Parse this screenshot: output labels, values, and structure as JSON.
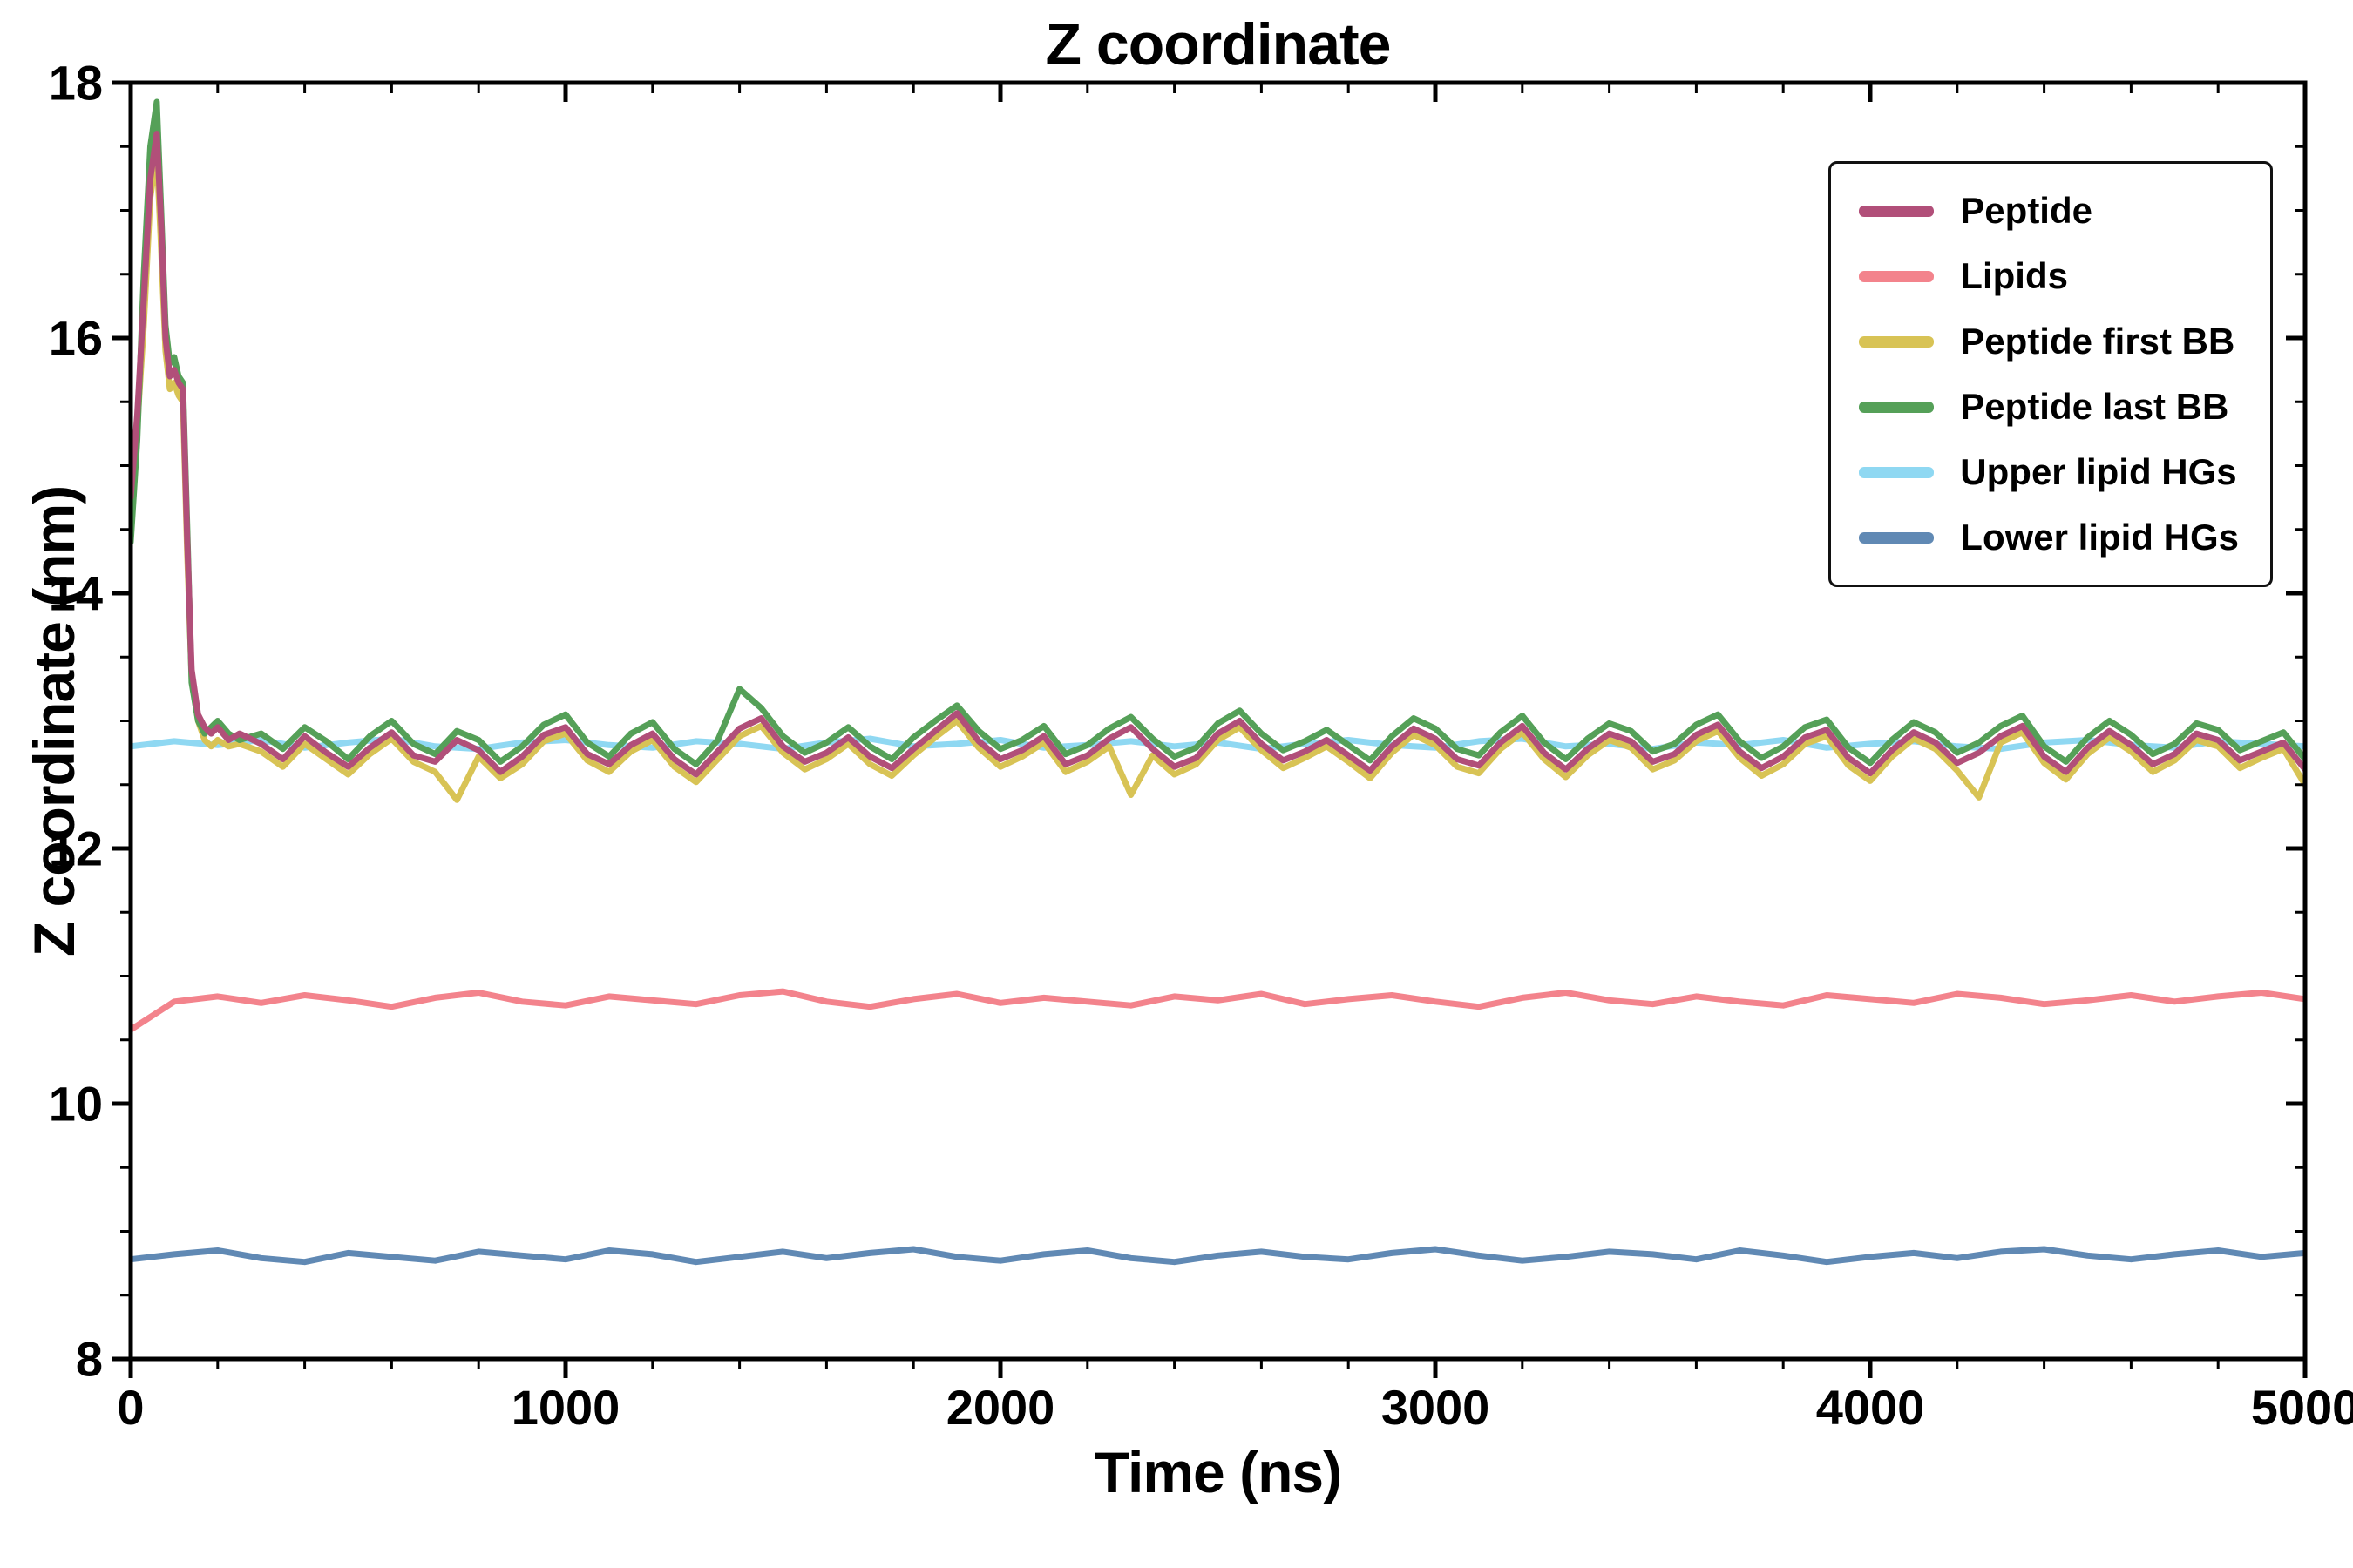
{
  "chart_data": {
    "type": "line",
    "title": "Z coordinate",
    "xlabel": "Time (ns)",
    "ylabel": "Z coordinate (nm)",
    "xlim": [
      0,
      5000
    ],
    "ylim": [
      8,
      18
    ],
    "xticks": [
      0,
      1000,
      2000,
      3000,
      4000,
      5000
    ],
    "yticks": [
      8,
      10,
      12,
      14,
      16,
      18
    ],
    "x_minor_step": 200,
    "y_minor_step": 0.5,
    "grid": false,
    "legend_position": "upper right",
    "axis_color": "#000000",
    "background_color": "#ffffff",
    "x_axes": {
      "peptide": {
        "head": [
          0,
          15,
          30,
          45,
          60,
          70,
          80,
          90,
          100,
          110,
          120,
          130,
          140,
          155,
          170,
          185,
          200,
          225,
          250
        ],
        "start": 300,
        "step": 50,
        "count": 95
      },
      "flat": {
        "start": 0,
        "step": 100,
        "count": 51
      }
    },
    "draw_order": [
      "upper-lipid-hgs",
      "lipids",
      "lower-lipid-hgs",
      "peptide-first-bb",
      "peptide-last-bb",
      "peptide"
    ],
    "series": [
      {
        "id": "peptide",
        "name": "Peptide",
        "color": "#b14f79",
        "line_width": 7,
        "x_ref": "peptide",
        "values": [
          14.75,
          15.4,
          16.3,
          17.25,
          17.6,
          16.9,
          16.0,
          15.7,
          15.75,
          15.65,
          15.6,
          14.4,
          13.4,
          13.05,
          12.95,
          12.9,
          12.95,
          12.85,
          12.9,
          12.82,
          12.7,
          12.88,
          12.75,
          12.64,
          12.79,
          12.91,
          12.73,
          12.68,
          12.85,
          12.77,
          12.6,
          12.72,
          12.89,
          12.95,
          12.74,
          12.66,
          12.81,
          12.9,
          12.7,
          12.58,
          12.76,
          12.94,
          13.02,
          12.8,
          12.68,
          12.75,
          12.87,
          12.72,
          12.63,
          12.78,
          12.92,
          13.06,
          12.84,
          12.7,
          12.77,
          12.88,
          12.66,
          12.73,
          12.86,
          12.95,
          12.78,
          12.64,
          12.71,
          12.9,
          13.0,
          12.82,
          12.69,
          12.76,
          12.85,
          12.73,
          12.61,
          12.8,
          12.94,
          12.86,
          12.7,
          12.65,
          12.83,
          12.96,
          12.75,
          12.62,
          12.78,
          12.9,
          12.84,
          12.68,
          12.74,
          12.89,
          12.97,
          12.76,
          12.63,
          12.72,
          12.87,
          12.93,
          12.71,
          12.59,
          12.77,
          12.91,
          12.83,
          12.67,
          12.75,
          12.88,
          12.96,
          12.72,
          12.6,
          12.79,
          12.92,
          12.81,
          12.66,
          12.74,
          12.9,
          12.85,
          12.69,
          12.76,
          12.83,
          12.62
        ]
      },
      {
        "id": "lipids",
        "name": "Lipids",
        "color": "#f3838c",
        "line_width": 7,
        "x_ref": "flat",
        "values": [
          10.58,
          10.8,
          10.84,
          10.79,
          10.85,
          10.81,
          10.76,
          10.83,
          10.87,
          10.8,
          10.77,
          10.84,
          10.81,
          10.78,
          10.85,
          10.88,
          10.8,
          10.76,
          10.82,
          10.86,
          10.79,
          10.83,
          10.8,
          10.77,
          10.84,
          10.81,
          10.86,
          10.78,
          10.82,
          10.85,
          10.8,
          10.76,
          10.83,
          10.87,
          10.81,
          10.78,
          10.84,
          10.8,
          10.77,
          10.85,
          10.82,
          10.79,
          10.86,
          10.83,
          10.78,
          10.81,
          10.85,
          10.8,
          10.84,
          10.87,
          10.82
        ]
      },
      {
        "id": "peptide-first-bb",
        "name": "Peptide first BB",
        "color": "#d8c355",
        "line_width": 7,
        "x_ref": "peptide",
        "values": [
          14.6,
          15.3,
          16.1,
          17.1,
          17.45,
          16.7,
          15.9,
          15.6,
          15.65,
          15.55,
          15.5,
          14.3,
          13.35,
          13.0,
          12.85,
          12.8,
          12.85,
          12.8,
          12.82,
          12.76,
          12.64,
          12.82,
          12.7,
          12.58,
          12.74,
          12.86,
          12.68,
          12.6,
          12.38,
          12.72,
          12.55,
          12.66,
          12.84,
          12.9,
          12.69,
          12.6,
          12.76,
          12.85,
          12.64,
          12.52,
          12.7,
          12.88,
          12.96,
          12.75,
          12.62,
          12.7,
          12.82,
          12.66,
          12.57,
          12.73,
          12.87,
          13.0,
          12.79,
          12.64,
          12.72,
          12.83,
          12.6,
          12.68,
          12.8,
          12.42,
          12.73,
          12.58,
          12.66,
          12.85,
          12.95,
          12.77,
          12.63,
          12.71,
          12.8,
          12.68,
          12.55,
          12.75,
          12.89,
          12.81,
          12.64,
          12.59,
          12.78,
          12.91,
          12.7,
          12.56,
          12.73,
          12.85,
          12.79,
          12.62,
          12.69,
          12.84,
          12.92,
          12.71,
          12.57,
          12.66,
          12.82,
          12.88,
          12.65,
          12.53,
          12.72,
          12.86,
          12.78,
          12.61,
          12.4,
          12.83,
          12.91,
          12.67,
          12.54,
          12.74,
          12.87,
          12.76,
          12.6,
          12.69,
          12.85,
          12.8,
          12.63,
          12.71,
          12.78,
          12.5
        ]
      },
      {
        "id": "peptide-last-bb",
        "name": "Peptide last BB",
        "color": "#55a058",
        "line_width": 7,
        "x_ref": "peptide",
        "values": [
          14.4,
          15.2,
          16.5,
          17.5,
          17.85,
          17.0,
          16.1,
          15.8,
          15.85,
          15.7,
          15.65,
          14.5,
          13.3,
          13.0,
          12.9,
          12.95,
          13.0,
          12.9,
          12.85,
          12.9,
          12.78,
          12.95,
          12.84,
          12.7,
          12.88,
          13.0,
          12.82,
          12.74,
          12.92,
          12.85,
          12.68,
          12.8,
          12.97,
          13.05,
          12.83,
          12.72,
          12.9,
          12.99,
          12.78,
          12.66,
          12.85,
          13.25,
          13.1,
          12.88,
          12.75,
          12.83,
          12.95,
          12.8,
          12.7,
          12.87,
          13.0,
          13.12,
          12.92,
          12.78,
          12.85,
          12.96,
          12.74,
          12.81,
          12.94,
          13.03,
          12.86,
          12.72,
          12.79,
          12.98,
          13.08,
          12.9,
          12.77,
          12.84,
          12.93,
          12.81,
          12.69,
          12.88,
          13.02,
          12.94,
          12.78,
          12.73,
          12.91,
          13.04,
          12.83,
          12.7,
          12.86,
          12.98,
          12.92,
          12.76,
          12.82,
          12.97,
          13.05,
          12.84,
          12.71,
          12.8,
          12.95,
          13.01,
          12.79,
          12.67,
          12.85,
          12.99,
          12.91,
          12.75,
          12.83,
          12.96,
          13.04,
          12.8,
          12.68,
          12.87,
          13.0,
          12.89,
          12.74,
          12.82,
          12.98,
          12.93,
          12.77,
          12.84,
          12.91,
          12.7
        ]
      },
      {
        "id": "upper-lipid-hgs",
        "name": "Upper lipid HGs",
        "color": "#8fd8f2",
        "line_width": 7,
        "x_ref": "flat",
        "values": [
          12.8,
          12.84,
          12.81,
          12.85,
          12.79,
          12.83,
          12.86,
          12.8,
          12.78,
          12.83,
          12.85,
          12.81,
          12.79,
          12.84,
          12.82,
          12.78,
          12.83,
          12.86,
          12.8,
          12.82,
          12.85,
          12.79,
          12.81,
          12.84,
          12.8,
          12.83,
          12.78,
          12.82,
          12.85,
          12.81,
          12.79,
          12.84,
          12.86,
          12.8,
          12.82,
          12.78,
          12.83,
          12.81,
          12.85,
          12.79,
          12.82,
          12.84,
          12.8,
          12.78,
          12.83,
          12.85,
          12.81,
          12.79,
          12.84,
          12.82,
          12.8
        ]
      },
      {
        "id": "lower-lipid-hgs",
        "name": "Lower lipid HGs",
        "color": "#6089b4",
        "line_width": 7,
        "x_ref": "flat",
        "values": [
          8.78,
          8.82,
          8.85,
          8.79,
          8.76,
          8.83,
          8.8,
          8.77,
          8.84,
          8.81,
          8.78,
          8.85,
          8.82,
          8.76,
          8.8,
          8.84,
          8.79,
          8.83,
          8.86,
          8.8,
          8.77,
          8.82,
          8.85,
          8.79,
          8.76,
          8.81,
          8.84,
          8.8,
          8.78,
          8.83,
          8.86,
          8.81,
          8.77,
          8.8,
          8.84,
          8.82,
          8.78,
          8.85,
          8.81,
          8.76,
          8.8,
          8.83,
          8.79,
          8.84,
          8.86,
          8.81,
          8.78,
          8.82,
          8.85,
          8.8,
          8.83
        ]
      }
    ]
  }
}
